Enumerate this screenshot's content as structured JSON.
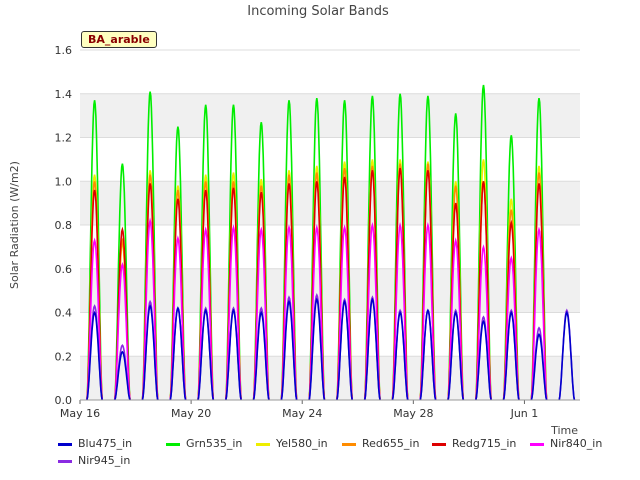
{
  "chart_data": {
    "type": "line",
    "title": "Incoming Solar Bands",
    "xlabel": "Time",
    "ylabel": "Solar Radiation (W/m2)",
    "ylim": [
      0,
      1.6
    ],
    "xlim": [
      "2024-05-16",
      "2024-06-03"
    ],
    "x_ticks": [
      "May 16",
      "May 20",
      "May 24",
      "May 28",
      "Jun 1"
    ],
    "y_ticks": [
      "0.0",
      "0.2",
      "0.4",
      "0.6",
      "0.8",
      "1.0",
      "1.2",
      "1.4",
      "1.6"
    ],
    "grid": true,
    "legend_position": "bottom",
    "annotation": "BA_arable",
    "days": [
      "May 16",
      "May 17",
      "May 18",
      "May 19",
      "May 20",
      "May 21",
      "May 22",
      "May 23",
      "May 24",
      "May 25",
      "May 26",
      "May 27",
      "May 28",
      "May 29",
      "May 30",
      "May 31",
      "Jun 1",
      "Jun 2"
    ],
    "series": [
      {
        "name": "Blu475_in",
        "color": "#0000cc",
        "daily_peak": [
          0.4,
          0.22,
          0.43,
          0.42,
          0.41,
          0.41,
          0.4,
          0.45,
          0.46,
          0.45,
          0.46,
          0.4,
          0.41,
          0.4,
          0.36,
          0.4,
          0.3,
          0.4
        ]
      },
      {
        "name": "Grn535_in",
        "color": "#00ee00",
        "daily_peak": [
          1.37,
          1.08,
          1.41,
          1.25,
          1.35,
          1.35,
          1.27,
          1.37,
          1.38,
          1.37,
          1.39,
          1.4,
          1.39,
          1.31,
          1.44,
          1.21,
          1.38,
          0
        ]
      },
      {
        "name": "Yel580_in",
        "color": "#eeee00",
        "daily_peak": [
          1.03,
          0.72,
          1.05,
          0.98,
          1.03,
          1.04,
          1.01,
          1.05,
          1.07,
          1.09,
          1.1,
          1.1,
          1.09,
          1.0,
          1.1,
          0.92,
          1.07,
          0
        ]
      },
      {
        "name": "Red655_in",
        "color": "#ff8c00",
        "daily_peak": [
          1.0,
          0.73,
          1.03,
          0.96,
          1.0,
          1.0,
          0.98,
          1.03,
          1.04,
          1.06,
          1.07,
          1.08,
          1.08,
          0.98,
          1.0,
          0.87,
          1.04,
          0
        ]
      },
      {
        "name": "Redg715_in",
        "color": "#dd0000",
        "daily_peak": [
          0.96,
          0.78,
          0.99,
          0.92,
          0.96,
          0.97,
          0.95,
          0.99,
          1.0,
          1.02,
          1.05,
          1.06,
          1.05,
          0.9,
          1.0,
          0.81,
          0.99,
          0
        ]
      },
      {
        "name": "Nir840_in",
        "color": "#ff00ff",
        "daily_peak": [
          0.73,
          0.62,
          0.82,
          0.74,
          0.78,
          0.79,
          0.78,
          0.79,
          0.79,
          0.79,
          0.8,
          0.8,
          0.8,
          0.73,
          0.7,
          0.65,
          0.78,
          0
        ]
      },
      {
        "name": "Nir945_in",
        "color": "#8a2be2",
        "daily_peak": [
          0.43,
          0.25,
          0.45,
          0.42,
          0.42,
          0.42,
          0.42,
          0.47,
          0.48,
          0.46,
          0.47,
          0.41,
          0.41,
          0.41,
          0.38,
          0.41,
          0.33,
          0.41
        ]
      }
    ]
  }
}
